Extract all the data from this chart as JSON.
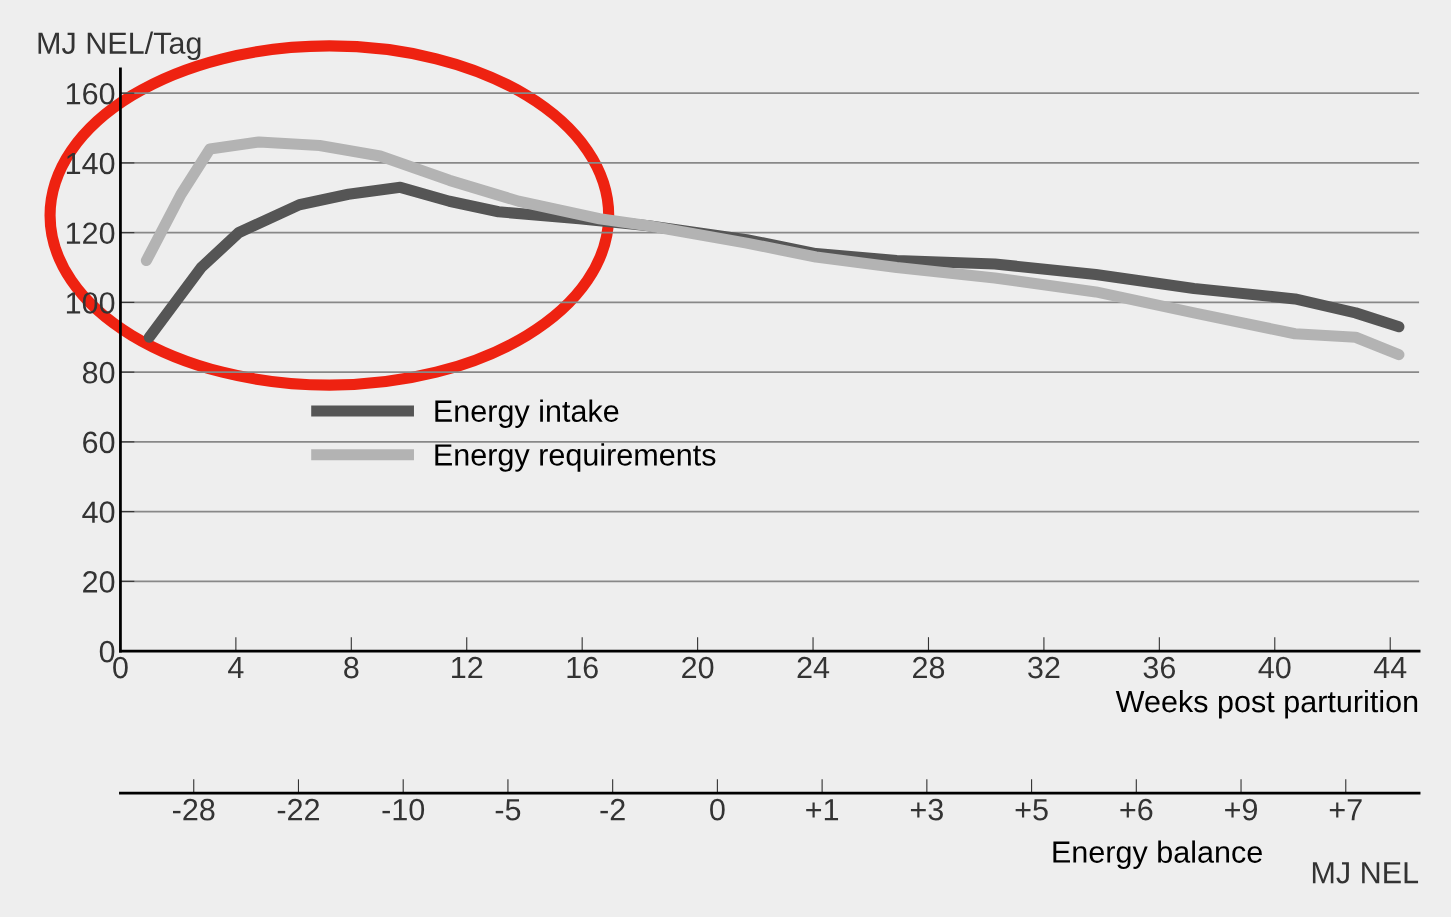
{
  "chart_data": {
    "type": "line",
    "xlabel": "Weeks post parturition",
    "ylabel": "MJ NEL/Tag",
    "x2label": "Energy balance",
    "xlim": [
      0,
      45
    ],
    "ylim": [
      0,
      167
    ],
    "xticks": [
      0,
      4,
      8,
      12,
      16,
      20,
      24,
      28,
      32,
      36,
      40,
      44
    ],
    "yticks": [
      0,
      20,
      40,
      60,
      80,
      100,
      120,
      140,
      160
    ],
    "annotations": [
      "-28",
      "-22",
      "-10",
      "-5",
      "-2",
      "0",
      "+1",
      "+3",
      "+5",
      "+6",
      "+9",
      "+7",
      "MJ NEL"
    ],
    "grid": "y",
    "legend": "left",
    "marker": "none",
    "line_style": "solid",
    "series": [
      {
        "name": "Energy intake",
        "color": "#555555",
        "x": [
          1,
          2.8,
          4.1,
          6.2,
          7.9,
          9.7,
          11.4,
          13.1,
          15.9,
          18.3,
          21.7,
          24.1,
          26.9,
          30.3,
          33.8,
          37.2,
          40.7,
          42.8,
          44.3
        ],
        "values": [
          90,
          110,
          120,
          128,
          131,
          133,
          129,
          126,
          124,
          122,
          118,
          114,
          112,
          111,
          108,
          104,
          101,
          97,
          93
        ]
      },
      {
        "name": "Energy requirements",
        "color": "#b3b3b3",
        "x": [
          0.9,
          2.1,
          3.1,
          4.8,
          6.9,
          9,
          11.4,
          13.8,
          16.6,
          18.3,
          21.7,
          24.1,
          26.9,
          30.3,
          33.8,
          37.2,
          40.7,
          42.8,
          44.3
        ],
        "values": [
          112,
          131,
          144,
          146,
          145,
          142,
          135,
          129,
          124,
          122,
          117,
          113,
          110,
          107,
          103,
          97,
          91,
          90,
          85
        ]
      }
    ]
  }
}
